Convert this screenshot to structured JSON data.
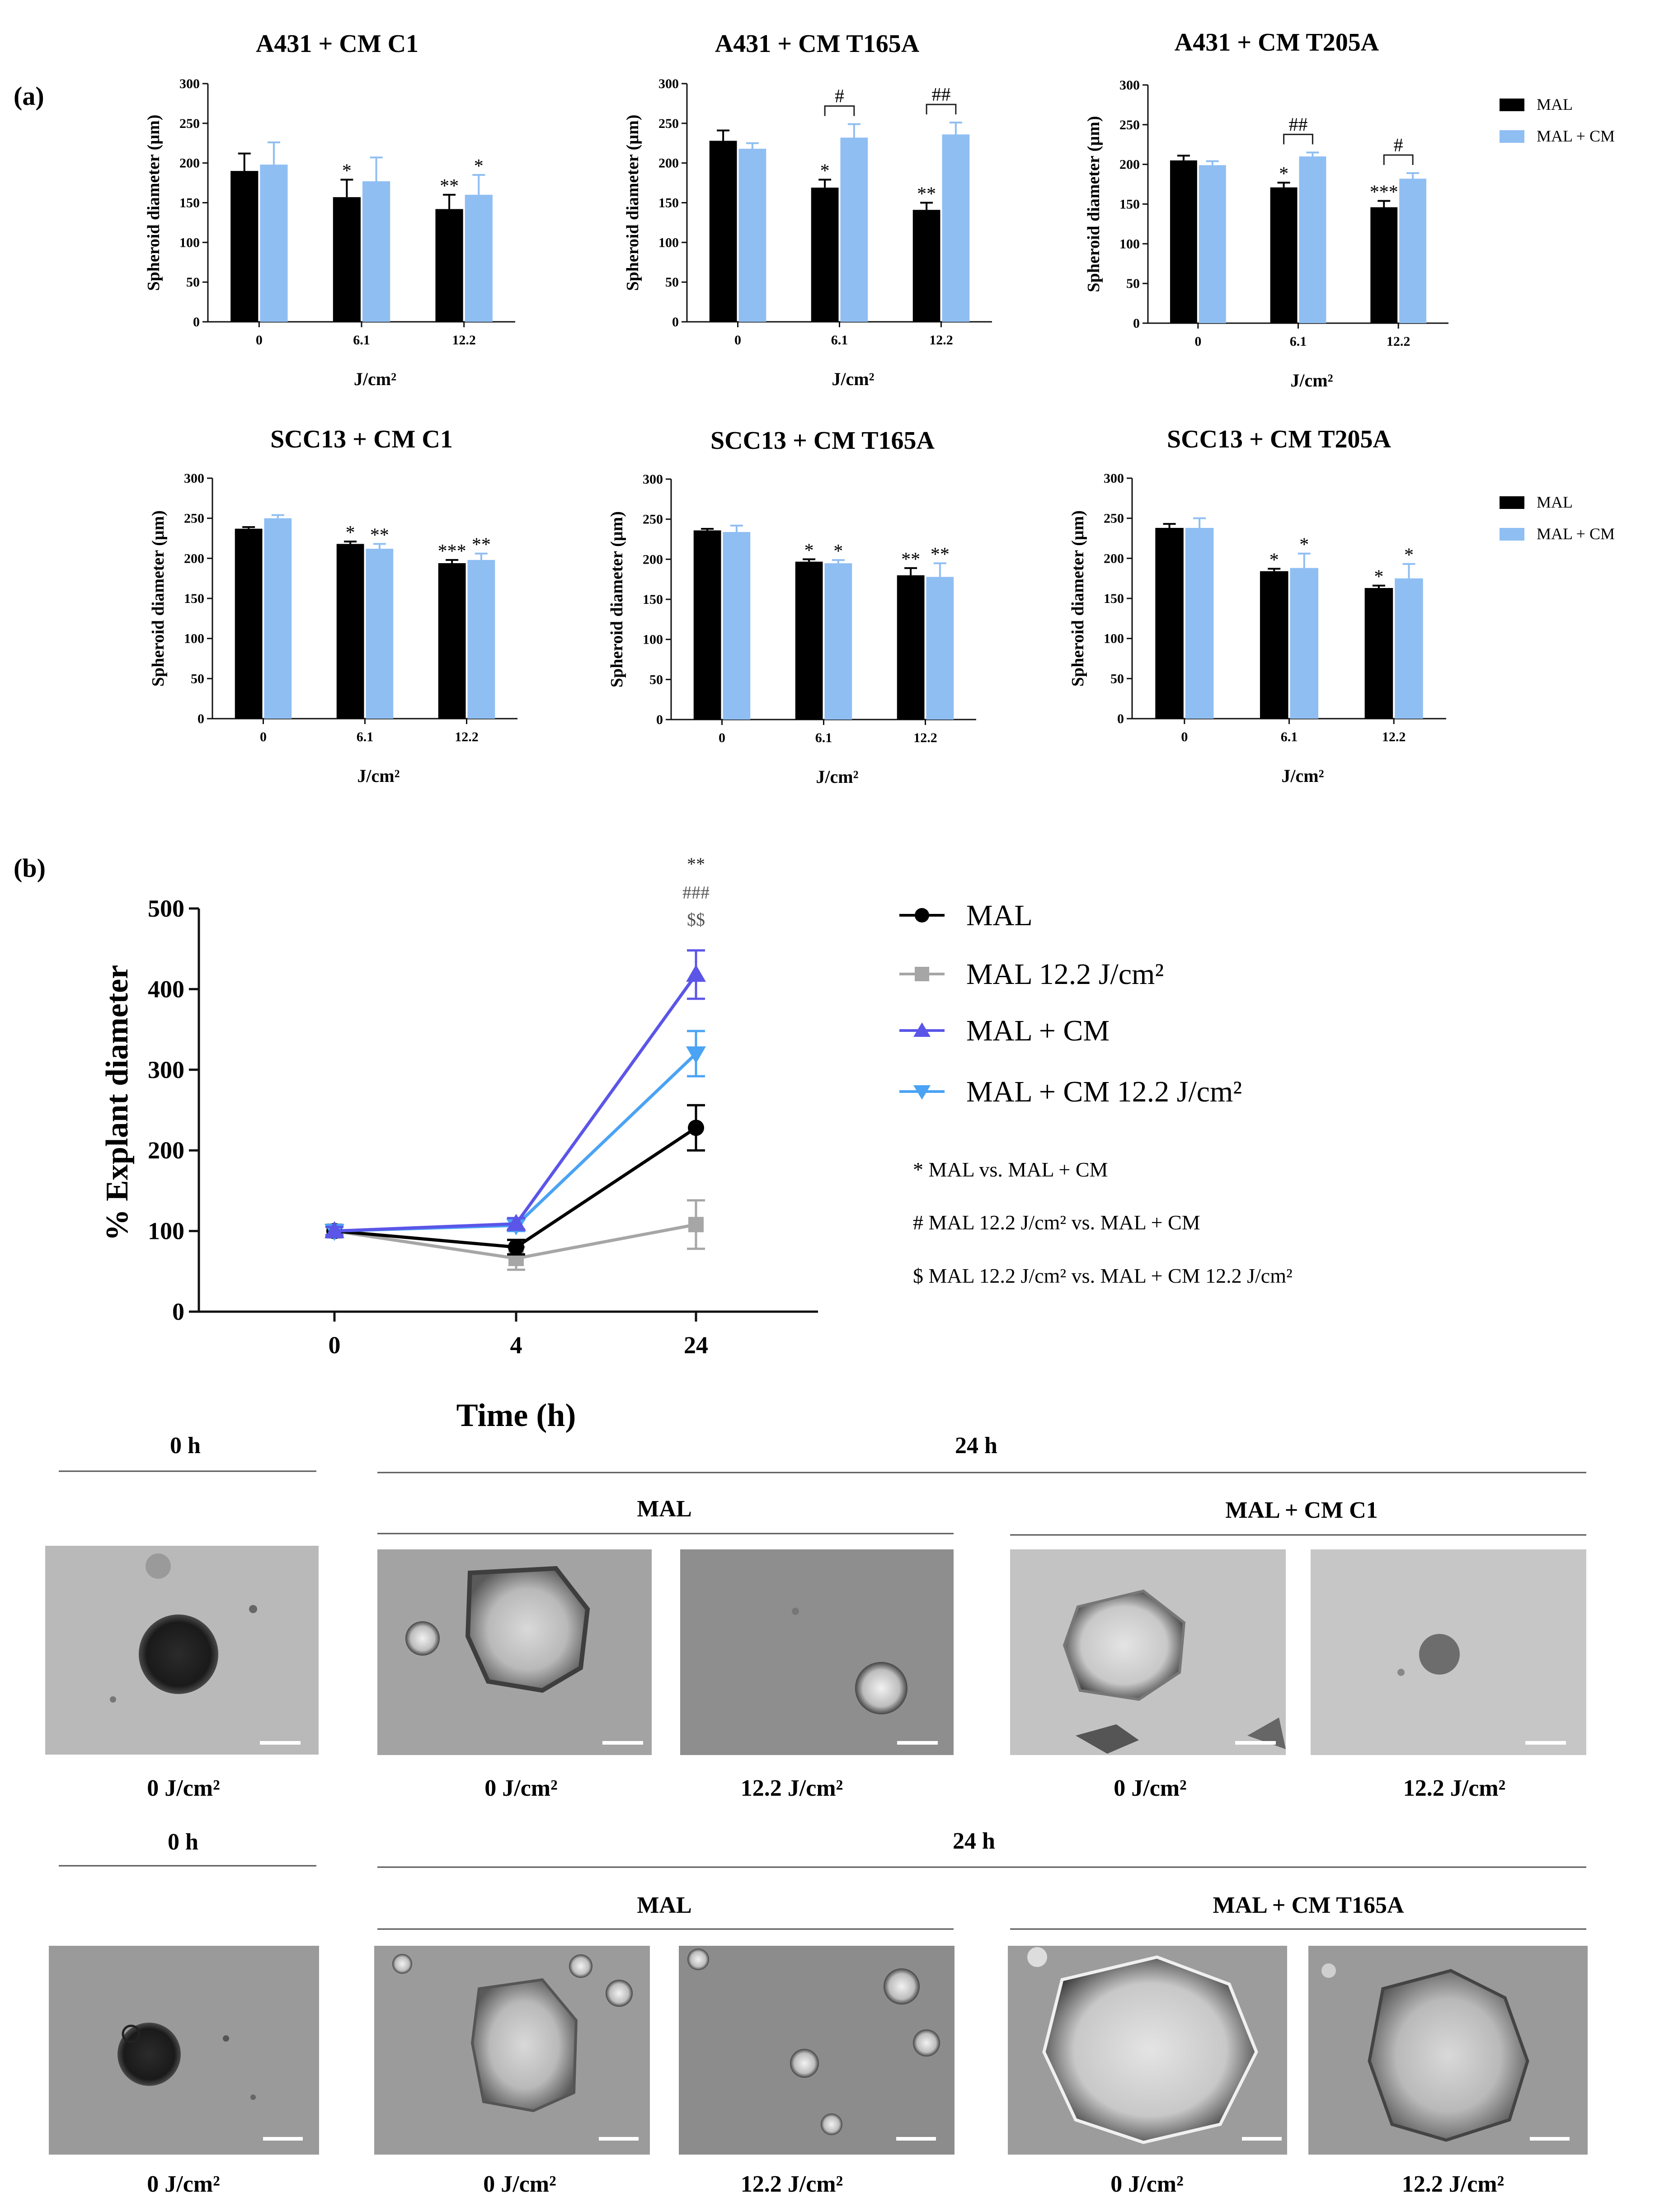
{
  "panel_a_label": "(a)",
  "panel_b_label": "(b)",
  "colors": {
    "mal": "#000000",
    "mal_cm": "#8fbef2",
    "b_mal": "#000000",
    "b_mal122": "#a6a6a6",
    "b_malcm": "#5b55e8",
    "b_malcm122": "#4aa3f4"
  },
  "chart_data": [
    {
      "type": "bar",
      "title": "A431 + CM C1",
      "ylabel": "Spheroid diameter (µm)",
      "xlabel": "J/cm²",
      "ylim": [
        0,
        300
      ],
      "yticks": [
        "0",
        "50",
        "100",
        "150",
        "200",
        "250",
        "300"
      ],
      "categories": [
        "0",
        "6.1",
        "12.2"
      ],
      "series": [
        {
          "name": "MAL",
          "values": [
            190,
            157,
            142
          ],
          "errors": [
            22,
            22,
            18
          ],
          "stars": [
            "",
            "*",
            "**"
          ]
        },
        {
          "name": "MAL + CM",
          "values": [
            198,
            177,
            160
          ],
          "errors": [
            28,
            30,
            25
          ],
          "stars": [
            "",
            "",
            "*"
          ]
        }
      ],
      "hash_brackets": []
    },
    {
      "type": "bar",
      "title": "A431 + CM T165A",
      "ylabel": "Spheroid diameter (µm)",
      "xlabel": "J/cm²",
      "ylim": [
        0,
        300
      ],
      "yticks": [
        "0",
        "50",
        "100",
        "150",
        "200",
        "250",
        "300"
      ],
      "categories": [
        "0",
        "6.1",
        "12.2"
      ],
      "series": [
        {
          "name": "MAL",
          "values": [
            228,
            169,
            141
          ],
          "errors": [
            13,
            10,
            9
          ],
          "stars": [
            "",
            "*",
            "**"
          ]
        },
        {
          "name": "MAL + CM",
          "values": [
            218,
            232,
            236
          ],
          "errors": [
            7,
            17,
            15
          ],
          "stars": [
            "",
            "",
            ""
          ]
        }
      ],
      "hash_brackets": [
        {
          "category": 1,
          "label": "#"
        },
        {
          "category": 2,
          "label": "##"
        }
      ]
    },
    {
      "type": "bar",
      "title": "A431 + CM T205A",
      "ylabel": "Spheroid diameter (µm)",
      "xlabel": "J/cm²",
      "ylim": [
        0,
        300
      ],
      "yticks": [
        "0",
        "50",
        "100",
        "150",
        "200",
        "250",
        "300"
      ],
      "categories": [
        "0",
        "6.1",
        "12.2"
      ],
      "series": [
        {
          "name": "MAL",
          "values": [
            205,
            171,
            146
          ],
          "errors": [
            6,
            6,
            8
          ],
          "stars": [
            "",
            "*",
            "***"
          ]
        },
        {
          "name": "MAL + CM",
          "values": [
            199,
            210,
            182
          ],
          "errors": [
            5,
            5,
            7
          ],
          "stars": [
            "",
            "",
            ""
          ]
        }
      ],
      "hash_brackets": [
        {
          "category": 1,
          "label": "##"
        },
        {
          "category": 2,
          "label": "#"
        }
      ]
    },
    {
      "type": "bar",
      "title": "SCC13 + CM C1",
      "ylabel": "Spheroid diameter (µm)",
      "xlabel": "J/cm²",
      "ylim": [
        0,
        300
      ],
      "yticks": [
        "0",
        "50",
        "100",
        "150",
        "200",
        "250",
        "300"
      ],
      "categories": [
        "0",
        "6.1",
        "12.2"
      ],
      "series": [
        {
          "name": "MAL",
          "values": [
            237,
            218,
            194
          ],
          "errors": [
            2,
            3,
            4
          ],
          "stars": [
            "",
            "*",
            "***"
          ]
        },
        {
          "name": "MAL + CM",
          "values": [
            250,
            212,
            198
          ],
          "errors": [
            4,
            6,
            8
          ],
          "stars": [
            "",
            "**",
            "**"
          ]
        }
      ],
      "hash_brackets": []
    },
    {
      "type": "bar",
      "title": "SCC13 + CM T165A",
      "ylabel": "Spheroid diameter (µm)",
      "xlabel": "J/cm²",
      "ylim": [
        0,
        300
      ],
      "yticks": [
        "0",
        "50",
        "100",
        "150",
        "200",
        "250",
        "300"
      ],
      "categories": [
        "0",
        "6.1",
        "12.2"
      ],
      "series": [
        {
          "name": "MAL",
          "values": [
            236,
            197,
            180
          ],
          "errors": [
            2,
            3,
            9
          ],
          "stars": [
            "",
            "*",
            "**"
          ]
        },
        {
          "name": "MAL + CM",
          "values": [
            234,
            195,
            178
          ],
          "errors": [
            8,
            4,
            17
          ],
          "stars": [
            "",
            "*",
            "**"
          ]
        }
      ],
      "hash_brackets": []
    },
    {
      "type": "bar",
      "title": "SCC13 + CM T205A",
      "ylabel": "Spheroid diameter (µm)",
      "xlabel": "J/cm²",
      "ylim": [
        0,
        300
      ],
      "yticks": [
        "0",
        "50",
        "100",
        "150",
        "200",
        "250",
        "300"
      ],
      "categories": [
        "0",
        "6.1",
        "12.2"
      ],
      "series": [
        {
          "name": "MAL",
          "values": [
            238,
            184,
            163
          ],
          "errors": [
            5,
            3,
            3
          ],
          "stars": [
            "",
            "*",
            "*"
          ]
        },
        {
          "name": "MAL + CM",
          "values": [
            238,
            188,
            175
          ],
          "errors": [
            12,
            18,
            18
          ],
          "stars": [
            "",
            "*",
            "*"
          ]
        }
      ],
      "hash_brackets": []
    },
    {
      "type": "line",
      "ylabel": "% Explant diameter",
      "xlabel": "Time (h)",
      "x": [
        0,
        4,
        24
      ],
      "xticks": [
        "0",
        "4",
        "24"
      ],
      "ylim": [
        0,
        500
      ],
      "yticks": [
        "0",
        "100",
        "200",
        "300",
        "400",
        "500"
      ],
      "series": [
        {
          "name": "MAL",
          "marker": "circle",
          "values": [
            100,
            80,
            228
          ],
          "errors": [
            6,
            9,
            28
          ]
        },
        {
          "name": "MAL 12.2 J/cm²",
          "marker": "square",
          "values": [
            100,
            66,
            108
          ],
          "errors": [
            6,
            14,
            30
          ]
        },
        {
          "name": "MAL + CM",
          "marker": "triangle-up",
          "values": [
            100,
            109,
            418
          ],
          "errors": [
            5,
            7,
            30
          ]
        },
        {
          "name": "MAL + CM 12.2 J/cm²",
          "marker": "triangle-down",
          "values": [
            100,
            107,
            320
          ],
          "errors": [
            5,
            7,
            28
          ]
        }
      ],
      "significance_labels": [
        "**",
        "###",
        "$$"
      ],
      "notes": [
        "* MAL vs. MAL + CM",
        "# MAL 12.2 J/cm² vs. MAL + CM",
        "$ MAL 12.2 J/cm² vs. MAL + CM 12.2 J/cm²"
      ]
    }
  ],
  "legend_a": [
    {
      "label": "MAL"
    },
    {
      "label": "MAL + CM"
    }
  ],
  "photos": {
    "row1": {
      "left_time": "0 h",
      "right_time": "24 h",
      "group1": "MAL",
      "group2": "MAL + CM C1",
      "captions": [
        "0 J/cm²",
        "0 J/cm²",
        "12.2 J/cm²",
        "0 J/cm²",
        "12.2 J/cm²"
      ]
    },
    "row2": {
      "left_time": "0 h",
      "right_time": "24 h",
      "group1": "MAL",
      "group2": "MAL + CM T165A",
      "captions": [
        "0 J/cm²",
        "0 J/cm²",
        "12.2 J/cm²",
        "0 J/cm²",
        "12.2 J/cm²"
      ]
    }
  }
}
